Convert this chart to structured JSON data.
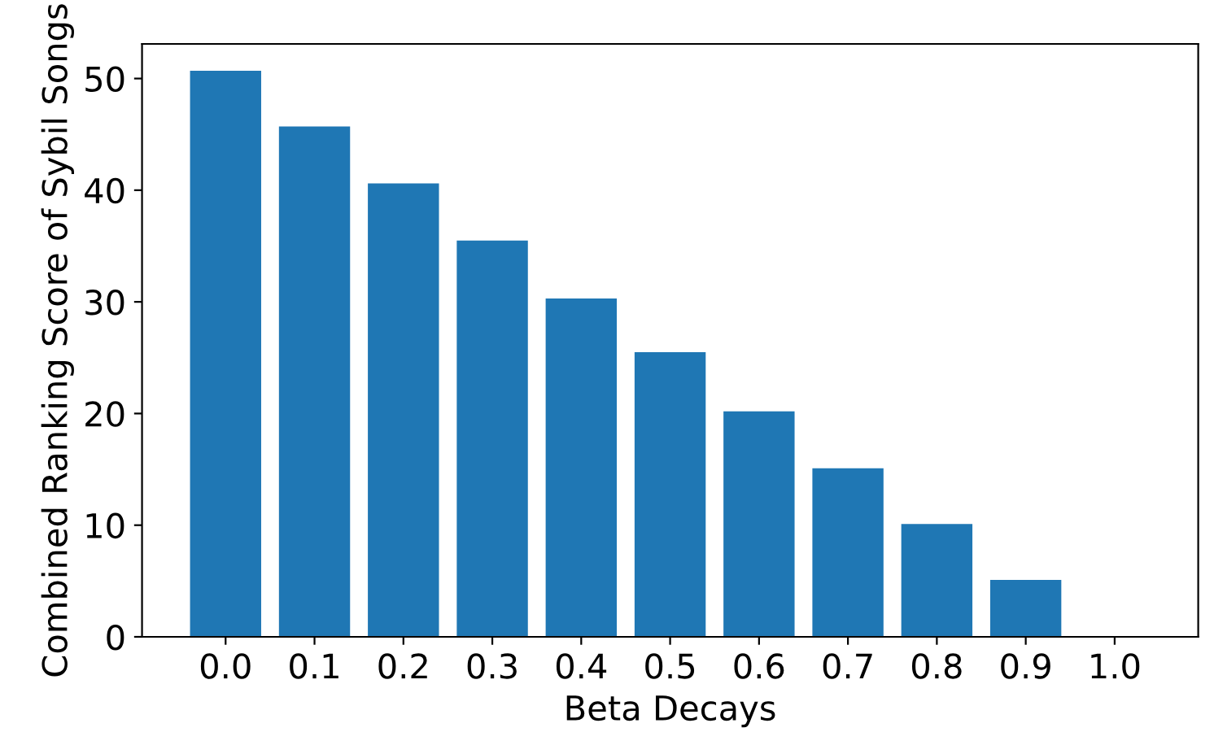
{
  "chart_data": {
    "type": "bar",
    "xlabel": "Beta Decays",
    "ylabel": "Combined Ranking Score of Sybil Songs",
    "categories": [
      "0.0",
      "0.1",
      "0.2",
      "0.3",
      "0.4",
      "0.5",
      "0.6",
      "0.7",
      "0.8",
      "0.9",
      "1.0"
    ],
    "values": [
      50.7,
      45.7,
      40.6,
      35.5,
      30.3,
      25.5,
      20.2,
      15.1,
      10.1,
      5.1,
      0
    ],
    "color": "#1f77b4",
    "ylim": [
      0,
      53.1
    ],
    "yticks": [
      0,
      10,
      20,
      30,
      40,
      50
    ],
    "grid": false,
    "legend": false
  }
}
